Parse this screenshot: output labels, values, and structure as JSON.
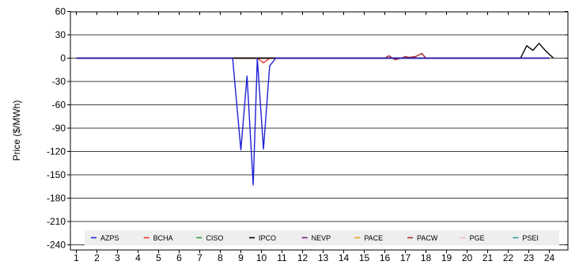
{
  "chart_data": {
    "type": "line",
    "title": "",
    "xlabel": "",
    "ylabel": "Price ($/MWh)",
    "ylim": [
      -240,
      60
    ],
    "xlim": [
      1,
      24
    ],
    "yticks": [
      60,
      30,
      0,
      -30,
      -60,
      -90,
      -120,
      -150,
      -180,
      -210,
      -240
    ],
    "xticks": [
      1,
      2,
      3,
      4,
      5,
      6,
      7,
      8,
      9,
      10,
      11,
      12,
      13,
      14,
      15,
      16,
      17,
      18,
      19,
      20,
      21,
      22,
      23,
      24
    ],
    "grid": true,
    "legend_position": "bottom",
    "series": [
      {
        "name": "AZPS",
        "color": "#1f1fd6",
        "x": [
          1,
          8.6,
          9,
          9.3,
          9.6,
          9.8,
          10.1,
          10.4,
          10.7,
          24
        ],
        "y": [
          0,
          0,
          -118,
          -23,
          -163,
          0,
          -117,
          -10,
          0,
          0
        ]
      },
      {
        "name": "BCHA",
        "color": "#e83a2a",
        "x": [
          1,
          9.8,
          10.1,
          10.4,
          24
        ],
        "y": [
          0,
          0,
          -6,
          0,
          0
        ]
      },
      {
        "name": "CISO",
        "color": "#2e9a3a",
        "x": [
          1,
          24
        ],
        "y": [
          0,
          0
        ]
      },
      {
        "name": "IPCO",
        "color": "#000000",
        "x": [
          1,
          22.6,
          22.9,
          23.2,
          23.5,
          23.8,
          24.2
        ],
        "y": [
          0,
          0,
          16,
          10,
          19,
          10,
          0
        ]
      },
      {
        "name": "NEVP",
        "color": "#7a1a7a",
        "x": [
          1,
          24
        ],
        "y": [
          0,
          0
        ]
      },
      {
        "name": "PACE",
        "color": "#f0a020",
        "x": [
          1,
          24
        ],
        "y": [
          0,
          0
        ]
      },
      {
        "name": "PACW",
        "color": "#b02a2a",
        "x": [
          1,
          16,
          16.2,
          16.5,
          16.8,
          17,
          17.2,
          17.5,
          17.8,
          18,
          24
        ],
        "y": [
          0,
          0,
          3,
          -2,
          0,
          2,
          1,
          2,
          6,
          0,
          0
        ]
      },
      {
        "name": "PGE",
        "color": "#f2b6c8",
        "x": [
          1,
          24
        ],
        "y": [
          0,
          0
        ]
      },
      {
        "name": "PSEI",
        "color": "#2a9a9a",
        "x": [
          1,
          24
        ],
        "y": [
          0,
          0
        ]
      }
    ]
  }
}
